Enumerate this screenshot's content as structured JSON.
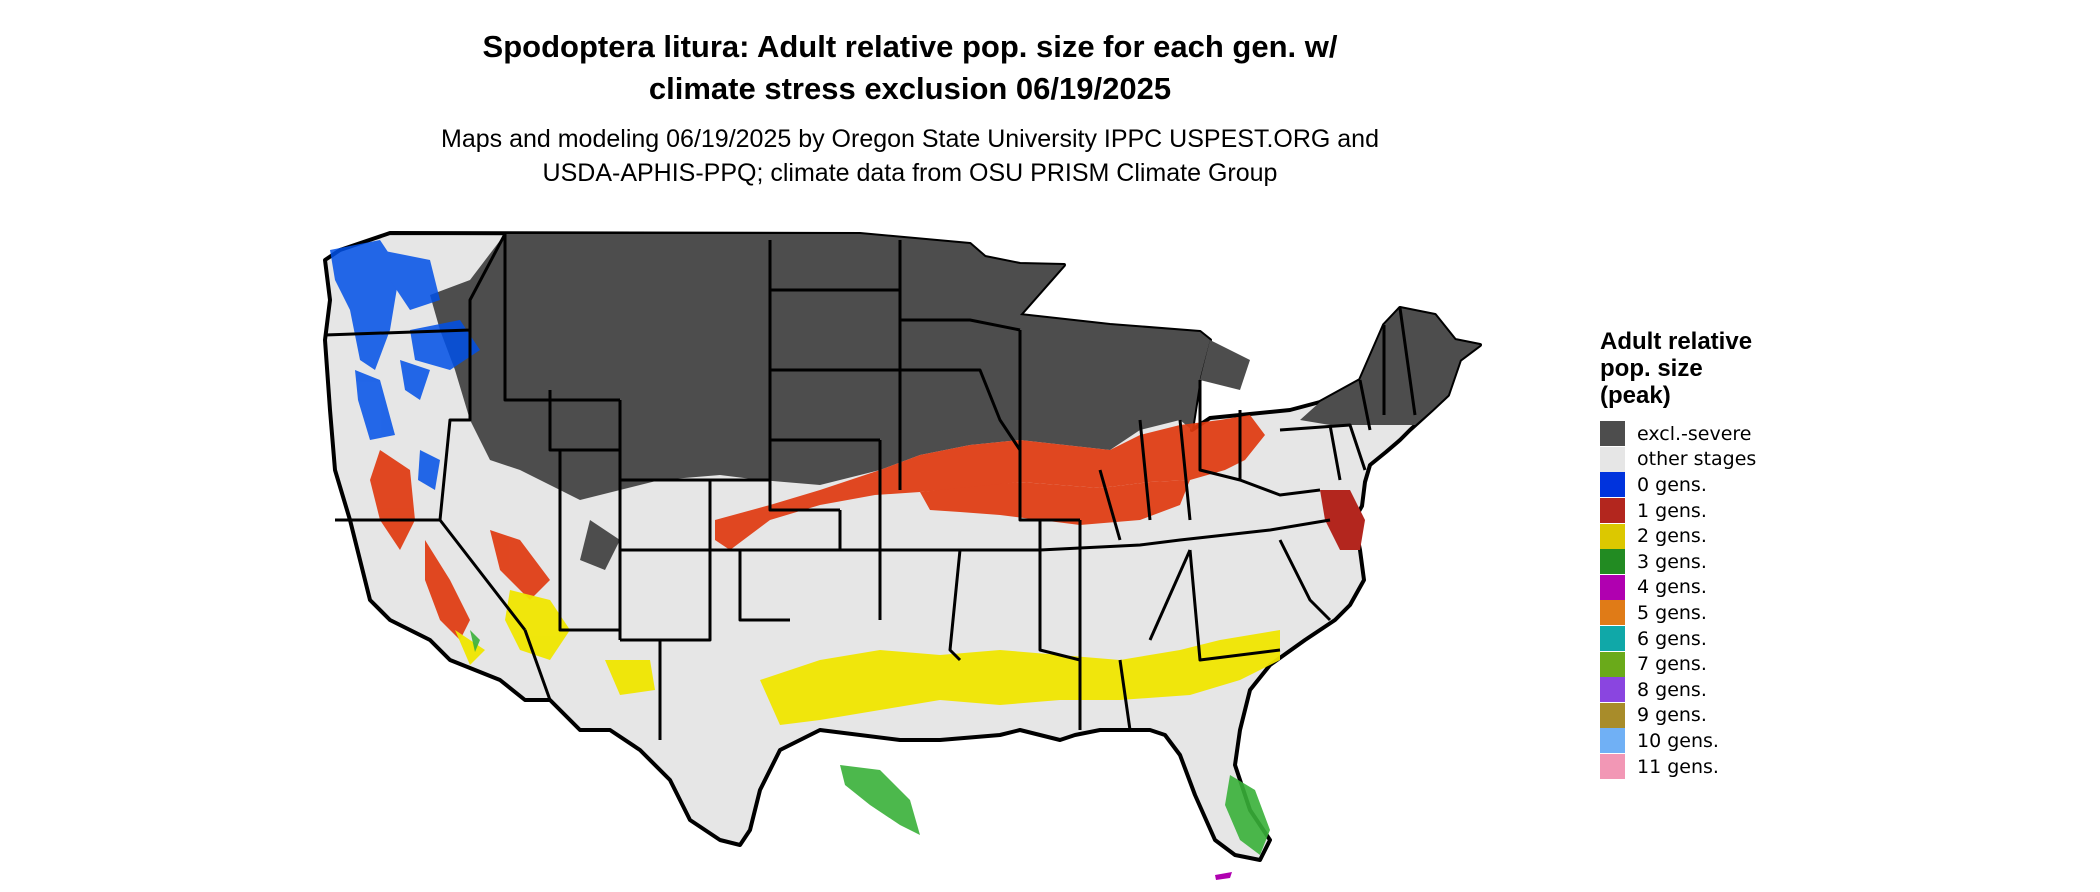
{
  "title_line1": "Spodoptera litura: Adult relative pop. size for each gen. w/",
  "title_line2": "climate stress exclusion 06/19/2025",
  "subtitle_line1": "Maps and modeling 06/19/2025 by Oregon State University IPPC USPEST.ORG and",
  "subtitle_line2": "USDA-APHIS-PPQ; climate data from OSU PRISM Climate Group",
  "legend": {
    "title_line1": "Adult relative",
    "title_line2": "pop. size",
    "title_line3": "(peak)",
    "items": [
      {
        "label": "excl.-severe",
        "color": "#4d4d4d"
      },
      {
        "label": "other stages",
        "color": "#e6e6e6"
      },
      {
        "label": "0 gens.",
        "color": "#0033dd"
      },
      {
        "label": "1 gens.",
        "color": "#b3261e"
      },
      {
        "label": "2 gens.",
        "color": "#dcc800"
      },
      {
        "label": "3 gens.",
        "color": "#228b22"
      },
      {
        "label": "4 gens.",
        "color": "#b000b0"
      },
      {
        "label": "5 gens.",
        "color": "#e07b17"
      },
      {
        "label": "6 gens.",
        "color": "#10a8a8"
      },
      {
        "label": "7 gens.",
        "color": "#6aaa1a"
      },
      {
        "label": "8 gens.",
        "color": "#8a45e0"
      },
      {
        "label": "9 gens.",
        "color": "#a88c2a"
      },
      {
        "label": "10 gens.",
        "color": "#70b0f5"
      },
      {
        "label": "11 gens.",
        "color": "#f297b5"
      }
    ]
  }
}
